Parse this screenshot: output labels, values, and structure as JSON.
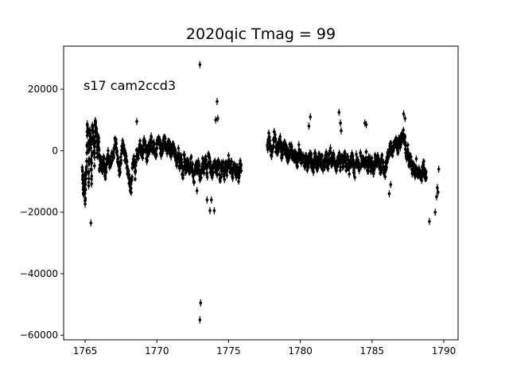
{
  "chart_data": {
    "type": "scatter",
    "title": "2020qic Tmag = 99",
    "annotation": "s17 cam2ccd3",
    "xlabel": "",
    "ylabel": "",
    "xlim": [
      1763.5,
      1791
    ],
    "ylim": [
      -61500,
      34000
    ],
    "x_ticks": [
      1765,
      1770,
      1775,
      1780,
      1785,
      1790
    ],
    "x_tick_labels": [
      "1765",
      "1770",
      "1775",
      "1780",
      "1785",
      "1790"
    ],
    "y_ticks": [
      20000,
      0,
      -20000,
      -40000,
      -60000
    ],
    "y_tick_labels": [
      "20000",
      "0",
      "−20000",
      "−40000",
      "−60000"
    ],
    "grid": false,
    "marker_color": "#000000",
    "error_bars": true,
    "series": [
      {
        "x": [
          1764.8,
          1764.85,
          1764.9,
          1764.95,
          1765.0,
          1765.05,
          1765.1,
          1765.15,
          1765.2,
          1765.25,
          1765.3,
          1765.35,
          1765.4,
          1765.45,
          1765.5,
          1765.55,
          1765.6,
          1765.65,
          1765.7,
          1765.75,
          1765.8,
          1765.85,
          1765.9,
          1765.95,
          1766.0,
          1766.1,
          1766.2,
          1766.3,
          1766.4,
          1766.5,
          1766.6,
          1766.7,
          1766.8,
          1766.9,
          1767.0,
          1767.1,
          1767.2,
          1767.3,
          1767.4,
          1767.5,
          1767.6,
          1767.7,
          1767.8,
          1767.9,
          1768.0,
          1768.1,
          1768.2,
          1768.3,
          1768.4,
          1768.5,
          1768.6,
          1768.7,
          1768.8,
          1768.9,
          1769.0,
          1769.1,
          1769.2,
          1769.3,
          1769.4,
          1769.5,
          1769.6,
          1769.7,
          1769.8,
          1769.9,
          1770.0,
          1770.1,
          1770.2,
          1770.3,
          1770.4,
          1770.5,
          1770.6,
          1770.7,
          1770.8,
          1770.9,
          1771.0,
          1771.1,
          1771.2,
          1771.3,
          1771.4,
          1771.5,
          1771.6,
          1771.7,
          1771.8,
          1771.9,
          1772.0,
          1772.1,
          1772.2,
          1772.3,
          1772.4,
          1772.5,
          1772.6,
          1772.7,
          1772.8,
          1772.9,
          1773.0,
          1773.1,
          1773.2,
          1773.3,
          1773.4,
          1773.5,
          1773.6,
          1773.7,
          1773.8,
          1773.9,
          1774.0,
          1774.1,
          1774.2,
          1774.3,
          1774.4,
          1774.5,
          1774.6,
          1774.7,
          1774.8,
          1774.9,
          1775.0,
          1775.1,
          1775.2,
          1775.3,
          1775.4,
          1775.5,
          1775.6,
          1775.7,
          1775.8
        ],
        "y": [
          -6000,
          -11000,
          -14000,
          -9000,
          -17000,
          -8000,
          -5000,
          8000,
          7000,
          -12000,
          4000,
          6000,
          2000,
          -10000,
          8000,
          5000,
          3000,
          -3000,
          9000,
          7000,
          6000,
          -1000,
          4000,
          2000,
          -5000,
          -3000,
          -6000,
          -2000,
          -8000,
          -4000,
          -1000,
          -5000,
          -3000,
          -2000,
          -2000,
          4000,
          1000,
          -4000,
          -7000,
          -3000,
          2000,
          0,
          -2000,
          -5000,
          -8000,
          -10000,
          -13000,
          -6000,
          -3000,
          -9000,
          0,
          -1000,
          2000,
          1000,
          -1000,
          3000,
          2000,
          -2000,
          0,
          1000,
          3000,
          0,
          2000,
          -1000,
          1000,
          3000,
          2000,
          0,
          1000,
          4000,
          2000,
          0,
          2000,
          1000,
          -1000,
          3000,
          0,
          -2000,
          -4000,
          -1000,
          -5000,
          -3000,
          -8000,
          -2000,
          -6000,
          -4000,
          -5000,
          -7000,
          -3000,
          -6000,
          -9000,
          -4000,
          -6000,
          -5000,
          -8000,
          -7000,
          -4000,
          -6000,
          -3000,
          -8000,
          -2000,
          -5000,
          -6000,
          -8000,
          -4000,
          -5000,
          -7000,
          -3000,
          -9000,
          -6000,
          -4000,
          -8000,
          -5000,
          -7000,
          -3000,
          -6000,
          -5000,
          -8000,
          -4000,
          -7000,
          -6000,
          -9000,
          -5000
        ],
        "outliers_x": [
          1765.4,
          1768.6,
          1772.8,
          1773.0,
          1773.0,
          1773.05,
          1773.5,
          1773.7,
          1773.8,
          1774.0,
          1774.1,
          1774.2,
          1774.25
        ],
        "outliers_y": [
          -23500,
          9500,
          -13000,
          28000,
          -55000,
          -49500,
          -16000,
          -19500,
          -16000,
          -19500,
          10000,
          16000,
          10500
        ]
      },
      {
        "x": [
          1777.7,
          1777.8,
          1777.9,
          1778.0,
          1778.1,
          1778.2,
          1778.3,
          1778.4,
          1778.5,
          1778.6,
          1778.7,
          1778.8,
          1778.9,
          1779.0,
          1779.1,
          1779.2,
          1779.3,
          1779.4,
          1779.5,
          1779.6,
          1779.7,
          1779.8,
          1779.9,
          1780.0,
          1780.1,
          1780.2,
          1780.3,
          1780.4,
          1780.5,
          1780.6,
          1780.7,
          1780.8,
          1780.9,
          1781.0,
          1781.1,
          1781.2,
          1781.3,
          1781.4,
          1781.5,
          1781.6,
          1781.7,
          1781.8,
          1781.9,
          1782.0,
          1782.1,
          1782.2,
          1782.3,
          1782.4,
          1782.5,
          1782.6,
          1782.7,
          1782.8,
          1782.9,
          1783.0,
          1783.1,
          1783.2,
          1783.3,
          1783.4,
          1783.5,
          1783.6,
          1783.7,
          1783.8,
          1783.9,
          1784.0,
          1784.1,
          1784.2,
          1784.3,
          1784.4,
          1784.5,
          1784.6,
          1784.7,
          1784.8,
          1784.9,
          1785.0,
          1785.1,
          1785.2,
          1785.3,
          1785.4,
          1785.5,
          1785.6,
          1785.7,
          1785.8,
          1785.9,
          1786.0,
          1786.1,
          1786.2,
          1786.3,
          1786.4,
          1786.5,
          1786.6,
          1786.7,
          1786.8,
          1786.9,
          1787.0,
          1787.1,
          1787.2,
          1787.3,
          1787.4,
          1787.5,
          1787.6,
          1787.7,
          1787.8,
          1787.9,
          1788.0,
          1788.1,
          1788.2,
          1788.3,
          1788.4,
          1788.5,
          1788.6,
          1788.7
        ],
        "y": [
          1000,
          4000,
          2000,
          -1000,
          3000,
          5000,
          1000,
          0,
          2000,
          3000,
          -1000,
          1000,
          2000,
          0,
          -2000,
          -1000,
          1000,
          0,
          -3000,
          -1000,
          -2000,
          -4000,
          0,
          -2000,
          -3000,
          -1000,
          -4000,
          -2000,
          -5000,
          -3000,
          -1000,
          -4000,
          -6000,
          -2000,
          -3000,
          -5000,
          -2000,
          -4000,
          -3000,
          -6000,
          -4000,
          -2000,
          -5000,
          -3000,
          -1000,
          -4000,
          -2000,
          -3000,
          -5000,
          -4000,
          -2000,
          -6000,
          -3000,
          -4000,
          -2000,
          -5000,
          -3000,
          -6000,
          -4000,
          -2000,
          -5000,
          -7000,
          -3000,
          -4000,
          -6000,
          -2000,
          -5000,
          -3000,
          -4000,
          -2000,
          -6000,
          -3000,
          -5000,
          -4000,
          -7000,
          -3000,
          -5000,
          -2000,
          -4000,
          -6000,
          -3000,
          -5000,
          -7000,
          -4000,
          -2000,
          0,
          2000,
          -1000,
          1000,
          3000,
          2000,
          0,
          4000,
          2000,
          6000,
          5000,
          3000,
          -2000,
          0,
          -4000,
          -3000,
          -6000,
          -5000,
          -7000,
          -4000,
          -8000,
          -6000,
          -9000,
          -7000,
          -5000,
          -8000
        ],
        "outliers_x": [
          1780.6,
          1780.7,
          1782.7,
          1782.8,
          1782.85,
          1784.5,
          1784.6,
          1786.2,
          1786.3,
          1787.2,
          1787.3,
          1788.7,
          1789.0,
          1789.4,
          1789.5,
          1789.55,
          1789.6,
          1789.65
        ],
        "outliers_y": [
          8000,
          11000,
          12500,
          9000,
          6500,
          9000,
          8500,
          -14000,
          -11000,
          12000,
          10500,
          -9000,
          -23000,
          -20000,
          -15000,
          -12000,
          -13500,
          -6000
        ]
      }
    ]
  }
}
